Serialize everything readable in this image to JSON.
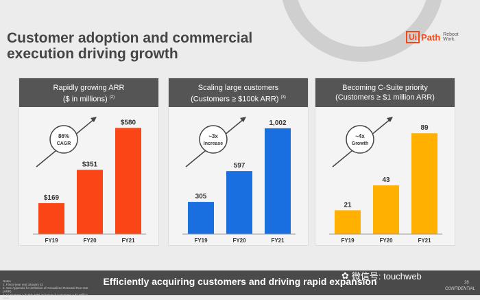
{
  "title_line1": "Customer adoption and commercial",
  "title_line2": "execution driving growth",
  "logo": {
    "mark": "Ui",
    "name": "Path",
    "tagline_1": "Reboot",
    "tagline_2": "Work."
  },
  "chart_data": [
    {
      "type": "bar",
      "title": "Rapidly growing ARR",
      "subtitle": "($ in millions)",
      "footnote_ref": "(2)",
      "categories": [
        "FY19",
        "FY20",
        "FY21"
      ],
      "values": [
        169,
        351,
        580
      ],
      "value_labels": [
        "$169",
        "$351",
        "$580"
      ],
      "ylim": [
        0,
        600
      ],
      "color": "#fa4616",
      "badge": [
        "86%",
        "CAGR"
      ]
    },
    {
      "type": "bar",
      "title": "Scaling large customers",
      "subtitle": "(Customers ≥ $100k ARR)",
      "footnote_ref": "(3)",
      "categories": [
        "FY19",
        "FY20",
        "FY21"
      ],
      "values": [
        305,
        597,
        1002
      ],
      "value_labels": [
        "305",
        "597",
        "1,002"
      ],
      "ylim": [
        0,
        1040
      ],
      "color": "#1a6fe0",
      "badge": [
        "~3x",
        "Increase"
      ]
    },
    {
      "type": "bar",
      "title": "Becoming C-Suite priority",
      "subtitle": "(Customers ≥ $1 million ARR)",
      "footnote_ref": "",
      "categories": [
        "FY19",
        "FY20",
        "FY21"
      ],
      "values": [
        21,
        43,
        89
      ],
      "value_labels": [
        "21",
        "43",
        "89"
      ],
      "ylim": [
        0,
        97
      ],
      "color": "#ffb000",
      "badge": [
        "~4x",
        "Growth"
      ]
    }
  ],
  "footer": {
    "headline": "Efficiently acquiring customers and driving rapid expansion",
    "notes_title": "Notes",
    "notes": [
      "1. Fiscal year end January 31",
      "2. See Appendix for definition of Annualized Renewal Run-rate (ARR)",
      "3. Customers ≥ $100k ARR inclusive of customers ≥ $1 Million ARR"
    ],
    "watermark": "微信号: touchweb",
    "page_number": "28",
    "confidential": "CONFIDENTIAL"
  }
}
